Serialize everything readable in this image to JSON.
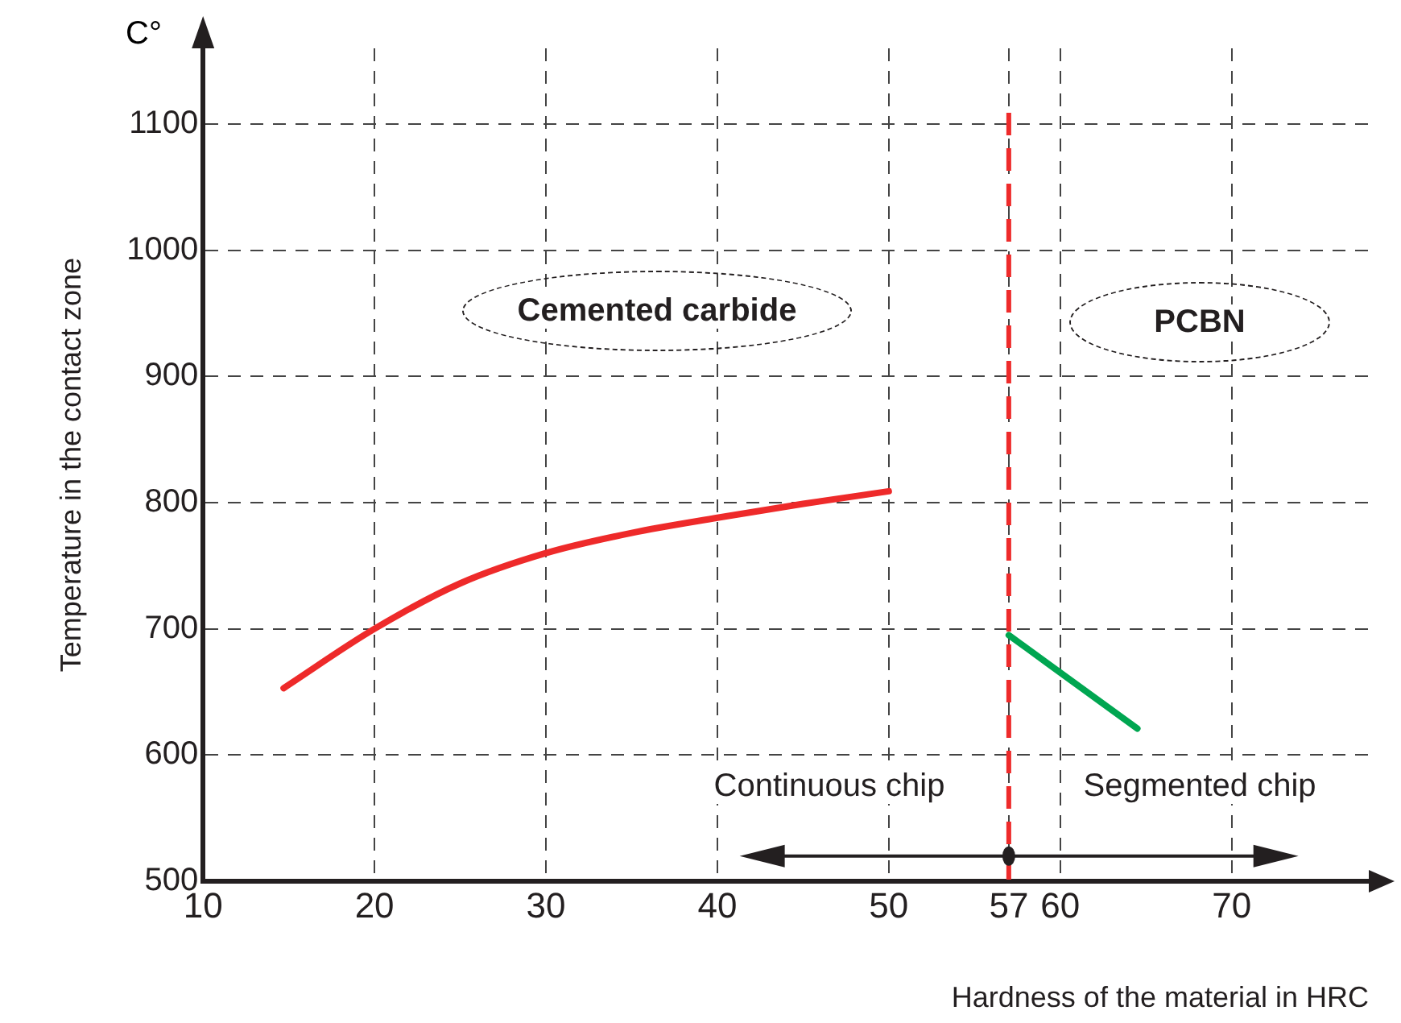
{
  "chart_data": {
    "type": "line",
    "xlabel": "Hardness of the material in HRC",
    "ylabel": "Temperature in the contact zone",
    "series": [
      {
        "color": "#ee2a2a",
        "x": [
          14.7,
          20,
          25,
          30,
          35,
          40,
          45,
          50
        ],
        "values": [
          653,
          700,
          736,
          760,
          776,
          788,
          799,
          809
        ]
      },
      {
        "color": "#00a651",
        "x": [
          57,
          64.5
        ],
        "values": [
          695,
          621
        ]
      }
    ],
    "xlim": [
      10,
      78
    ],
    "xticks": [
      10,
      20,
      30,
      40,
      50,
      {
        "value": 57,
        "label": "57"
      },
      60,
      70
    ],
    "ylim": [
      500,
      1160
    ],
    "yticks": [
      500,
      600,
      700,
      800,
      900,
      1000,
      1100
    ],
    "grid": true,
    "legend": false,
    "marker": "none",
    "ref_lines": [
      {
        "axis": "x",
        "value": 57,
        "color": "#ee2a2a",
        "line_style": "dashed"
      }
    ],
    "annotations": [
      "C°",
      "Cemented carbide",
      "PCBN",
      "Continuous chip",
      "Segmented chip"
    ]
  }
}
